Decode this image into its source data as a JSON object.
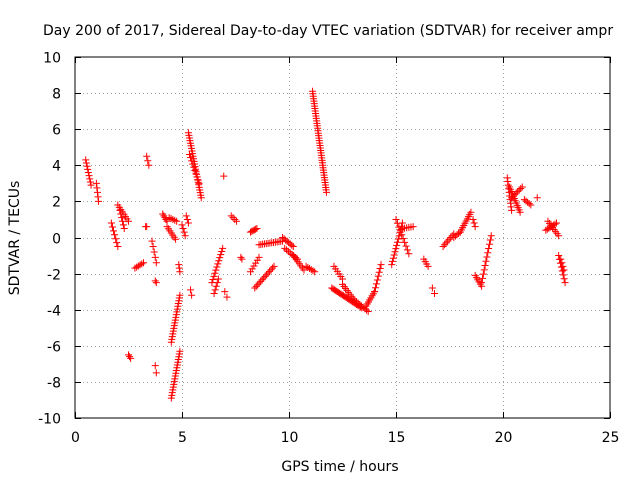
{
  "chart_data": {
    "type": "scatter",
    "title": "Day 200 of 2017, Sidereal Day-to-day VTEC variation (SDTVAR) for receiver ampr",
    "xlabel": "GPS time / hours",
    "ylabel": "SDTVAR / TECUs",
    "xlim": [
      0,
      25
    ],
    "ylim": [
      -10,
      10
    ],
    "xticks": [
      0,
      5,
      10,
      15,
      20,
      25
    ],
    "yticks": [
      -10,
      -8,
      -6,
      -4,
      -2,
      0,
      2,
      4,
      6,
      8,
      10
    ],
    "grid": true,
    "marker": "+",
    "marker_color": "#ff0000",
    "segments": [
      {
        "x0": 0.5,
        "y0": 4.3,
        "x1": 0.75,
        "y1": 2.9,
        "n": 9
      },
      {
        "x0": 1.0,
        "y0": 3.0,
        "x1": 1.1,
        "y1": 2.0,
        "n": 5
      },
      {
        "x0": 1.7,
        "y0": 0.8,
        "x1": 2.0,
        "y1": -0.5,
        "n": 7
      },
      {
        "x0": 2.0,
        "y0": 1.8,
        "x1": 2.5,
        "y1": 0.9,
        "n": 8
      },
      {
        "x0": 2.1,
        "y0": 1.5,
        "x1": 2.3,
        "y1": 0.5,
        "n": 6
      },
      {
        "x0": 2.5,
        "y0": -6.5,
        "x1": 2.6,
        "y1": -6.7,
        "n": 3
      },
      {
        "x0": 2.8,
        "y0": -1.7,
        "x1": 3.2,
        "y1": -1.4,
        "n": 6
      },
      {
        "x0": 3.3,
        "y0": 0.6,
        "x1": 3.35,
        "y1": 0.6,
        "n": 2
      },
      {
        "x0": 3.35,
        "y0": 4.5,
        "x1": 3.45,
        "y1": 4.0,
        "n": 3
      },
      {
        "x0": 3.6,
        "y0": -0.2,
        "x1": 3.8,
        "y1": -1.4,
        "n": 5
      },
      {
        "x0": 3.75,
        "y0": -2.4,
        "x1": 3.8,
        "y1": -2.5,
        "n": 2
      },
      {
        "x0": 3.75,
        "y0": -7.1,
        "x1": 3.8,
        "y1": -7.5,
        "n": 2
      },
      {
        "x0": 4.1,
        "y0": 1.3,
        "x1": 4.3,
        "y1": 0.9,
        "n": 5
      },
      {
        "x0": 4.3,
        "y0": 0.6,
        "x1": 4.7,
        "y1": -0.1,
        "n": 7
      },
      {
        "x0": 4.4,
        "y0": 1.1,
        "x1": 4.75,
        "y1": 0.9,
        "n": 5
      },
      {
        "x0": 4.5,
        "y0": -8.9,
        "x1": 4.9,
        "y1": -6.3,
        "n": 18
      },
      {
        "x0": 4.5,
        "y0": -5.8,
        "x1": 4.9,
        "y1": -3.2,
        "n": 18
      },
      {
        "x0": 4.85,
        "y0": -1.5,
        "x1": 4.9,
        "y1": -1.9,
        "n": 3
      },
      {
        "x0": 5.0,
        "y0": 0.7,
        "x1": 5.15,
        "y1": 0.1,
        "n": 4
      },
      {
        "x0": 5.2,
        "y0": 1.2,
        "x1": 5.3,
        "y1": 0.8,
        "n": 3
      },
      {
        "x0": 5.3,
        "y0": 5.8,
        "x1": 5.9,
        "y1": 2.2,
        "n": 26
      },
      {
        "x0": 5.35,
        "y0": 4.6,
        "x1": 5.8,
        "y1": 3.0,
        "n": 10
      },
      {
        "x0": 5.4,
        "y0": -2.9,
        "x1": 5.45,
        "y1": -3.2,
        "n": 2
      },
      {
        "x0": 6.4,
        "y0": -2.5,
        "x1": 6.9,
        "y1": -0.6,
        "n": 12
      },
      {
        "x0": 6.5,
        "y0": -3.1,
        "x1": 6.7,
        "y1": -2.3,
        "n": 5
      },
      {
        "x0": 6.95,
        "y0": 3.4,
        "x1": 7.0,
        "y1": 3.4,
        "n": 1
      },
      {
        "x0": 7.0,
        "y0": -3.0,
        "x1": 7.1,
        "y1": -3.3,
        "n": 2
      },
      {
        "x0": 7.3,
        "y0": 1.2,
        "x1": 7.55,
        "y1": 0.9,
        "n": 4
      },
      {
        "x0": 7.75,
        "y0": -1.1,
        "x1": 7.8,
        "y1": -1.2,
        "n": 2
      },
      {
        "x0": 8.2,
        "y0": 0.3,
        "x1": 8.5,
        "y1": 0.5,
        "n": 6
      },
      {
        "x0": 8.2,
        "y0": -1.9,
        "x1": 8.6,
        "y1": -1.1,
        "n": 6
      },
      {
        "x0": 8.4,
        "y0": -2.8,
        "x1": 9.3,
        "y1": -1.6,
        "n": 14
      },
      {
        "x0": 8.6,
        "y0": -0.4,
        "x1": 9.7,
        "y1": -0.2,
        "n": 14
      },
      {
        "x0": 9.7,
        "y0": 0.0,
        "x1": 10.2,
        "y1": -0.5,
        "n": 8
      },
      {
        "x0": 10.2,
        "y0": -1.0,
        "x1": 10.7,
        "y1": -1.8,
        "n": 8
      },
      {
        "x0": 9.8,
        "y0": -0.6,
        "x1": 10.4,
        "y1": -1.2,
        "n": 8
      },
      {
        "x0": 10.8,
        "y0": -1.6,
        "x1": 11.2,
        "y1": -1.9,
        "n": 6
      },
      {
        "x0": 11.1,
        "y0": 8.1,
        "x1": 11.75,
        "y1": 2.5,
        "n": 42
      },
      {
        "x0": 12.1,
        "y0": -1.6,
        "x1": 12.5,
        "y1": -2.3,
        "n": 6
      },
      {
        "x0": 12.0,
        "y0": -2.8,
        "x1": 13.4,
        "y1": -3.9,
        "n": 24
      },
      {
        "x0": 12.5,
        "y0": -2.6,
        "x1": 13.0,
        "y1": -3.4,
        "n": 8
      },
      {
        "x0": 13.0,
        "y0": -3.4,
        "x1": 13.7,
        "y1": -4.1,
        "n": 10
      },
      {
        "x0": 13.6,
        "y0": -3.8,
        "x1": 14.0,
        "y1": -3.0,
        "n": 8
      },
      {
        "x0": 14.0,
        "y0": -3.0,
        "x1": 14.3,
        "y1": -1.5,
        "n": 8
      },
      {
        "x0": 14.8,
        "y0": -1.5,
        "x1": 15.3,
        "y1": 0.8,
        "n": 14
      },
      {
        "x0": 15.0,
        "y0": 1.0,
        "x1": 15.6,
        "y1": -0.9,
        "n": 10
      },
      {
        "x0": 15.3,
        "y0": 0.5,
        "x1": 15.8,
        "y1": 0.6,
        "n": 6
      },
      {
        "x0": 16.3,
        "y0": -1.2,
        "x1": 16.5,
        "y1": -1.6,
        "n": 4
      },
      {
        "x0": 16.7,
        "y0": -2.8,
        "x1": 16.8,
        "y1": -3.1,
        "n": 2
      },
      {
        "x0": 17.2,
        "y0": -0.5,
        "x1": 17.7,
        "y1": 0.2,
        "n": 8
      },
      {
        "x0": 17.7,
        "y0": 0.0,
        "x1": 18.0,
        "y1": 0.3,
        "n": 5
      },
      {
        "x0": 18.0,
        "y0": 0.3,
        "x1": 18.5,
        "y1": 1.4,
        "n": 10
      },
      {
        "x0": 18.6,
        "y0": 1.0,
        "x1": 18.7,
        "y1": 0.6,
        "n": 3
      },
      {
        "x0": 18.7,
        "y0": -2.1,
        "x1": 19.0,
        "y1": -2.7,
        "n": 6
      },
      {
        "x0": 19.0,
        "y0": -2.5,
        "x1": 19.45,
        "y1": 0.1,
        "n": 12
      },
      {
        "x0": 20.2,
        "y0": 3.3,
        "x1": 20.4,
        "y1": 1.5,
        "n": 10
      },
      {
        "x0": 20.3,
        "y0": 2.8,
        "x1": 20.8,
        "y1": 1.4,
        "n": 12
      },
      {
        "x0": 20.4,
        "y0": 2.2,
        "x1": 20.9,
        "y1": 2.8,
        "n": 8
      },
      {
        "x0": 21.0,
        "y0": 2.1,
        "x1": 21.3,
        "y1": 1.8,
        "n": 5
      },
      {
        "x0": 21.6,
        "y0": 2.2,
        "x1": 21.6,
        "y1": 2.2,
        "n": 1
      },
      {
        "x0": 22.0,
        "y0": 0.4,
        "x1": 22.5,
        "y1": 0.8,
        "n": 8
      },
      {
        "x0": 22.1,
        "y0": 0.9,
        "x1": 22.6,
        "y1": 0.1,
        "n": 8
      },
      {
        "x0": 22.6,
        "y0": -1.0,
        "x1": 22.9,
        "y1": -2.5,
        "n": 8
      },
      {
        "x0": 22.7,
        "y0": -1.2,
        "x1": 22.85,
        "y1": -1.8,
        "n": 4
      }
    ]
  }
}
